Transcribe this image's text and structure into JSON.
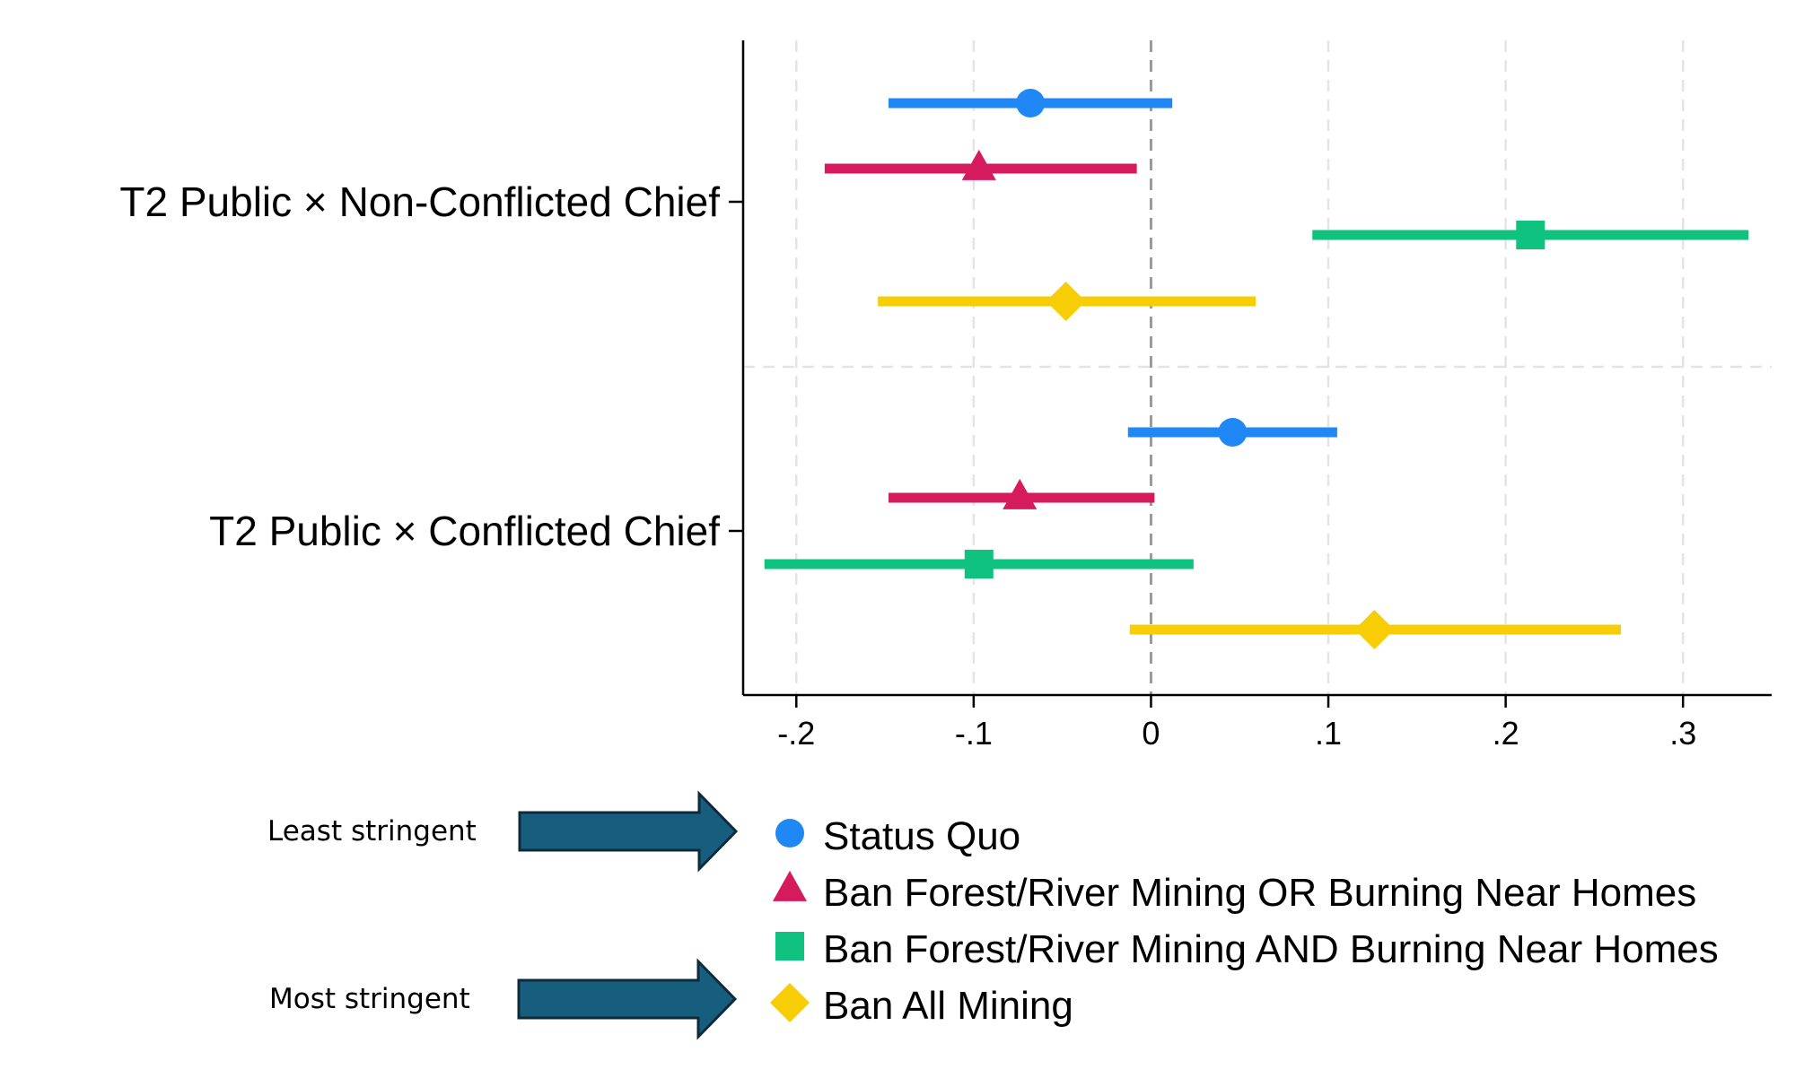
{
  "chart_data": {
    "type": "coefficient-plot",
    "orientation": "horizontal",
    "xlim": [
      -0.23,
      0.35
    ],
    "xticks": [
      -0.2,
      -0.1,
      0,
      0.1,
      0.2,
      0.3
    ],
    "xtick_labels": [
      "-.2",
      "-.1",
      "0",
      ".1",
      ".2",
      ".3"
    ],
    "groups": [
      "T2 Public × Non-Conflicted Chief",
      "T2 Public × Conflicted Chief"
    ],
    "series": [
      {
        "name": "Status Quo",
        "marker": "circle",
        "color": "#1f88f5",
        "points": [
          {
            "group": 0,
            "estimate": -0.068,
            "ci": [
              -0.148,
              0.012
            ]
          },
          {
            "group": 1,
            "estimate": 0.046,
            "ci": [
              -0.013,
              0.105
            ]
          }
        ]
      },
      {
        "name": "Ban Forest/River Mining OR Burning Near Homes",
        "marker": "triangle",
        "color": "#d61a5e",
        "points": [
          {
            "group": 0,
            "estimate": -0.097,
            "ci": [
              -0.184,
              -0.008
            ]
          },
          {
            "group": 1,
            "estimate": -0.074,
            "ci": [
              -0.148,
              0.002
            ]
          }
        ]
      },
      {
        "name": "Ban Forest/River Mining AND Burning Near Homes",
        "marker": "square",
        "color": "#10c27f",
        "points": [
          {
            "group": 0,
            "estimate": 0.214,
            "ci": [
              0.091,
              0.337
            ]
          },
          {
            "group": 1,
            "estimate": -0.097,
            "ci": [
              -0.218,
              0.024
            ]
          }
        ]
      },
      {
        "name": "Ban All Mining",
        "marker": "diamond",
        "color": "#f7cd06",
        "points": [
          {
            "group": 0,
            "estimate": -0.048,
            "ci": [
              -0.154,
              0.059
            ]
          },
          {
            "group": 1,
            "estimate": 0.126,
            "ci": [
              -0.012,
              0.265
            ]
          }
        ]
      }
    ]
  },
  "legend": {
    "least_label": "Least stringent",
    "most_label": "Most stringent",
    "arrow_color": "#175e7e"
  }
}
